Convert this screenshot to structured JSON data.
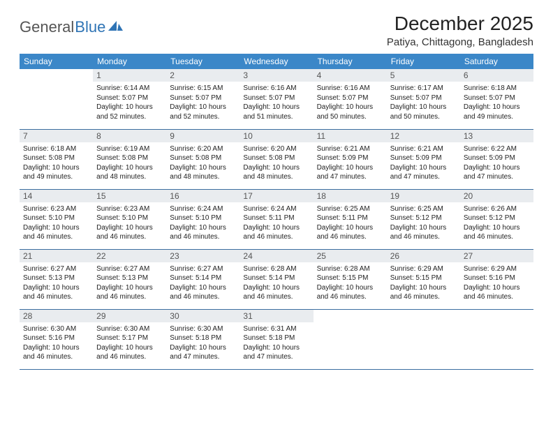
{
  "logo": {
    "text1": "General",
    "text2": "Blue",
    "icon_color": "#2f74b5"
  },
  "title": "December 2025",
  "subtitle": "Patiya, Chittagong, Bangladesh",
  "header_bg": "#3b87c8",
  "header_fg": "#ffffff",
  "daynum_bg": "#e9ecef",
  "border_color": "#3b6ea0",
  "weekdays": [
    "Sunday",
    "Monday",
    "Tuesday",
    "Wednesday",
    "Thursday",
    "Friday",
    "Saturday"
  ],
  "weeks": [
    [
      {
        "n": "",
        "lines": []
      },
      {
        "n": "1",
        "lines": [
          "Sunrise: 6:14 AM",
          "Sunset: 5:07 PM",
          "Daylight: 10 hours and 52 minutes."
        ]
      },
      {
        "n": "2",
        "lines": [
          "Sunrise: 6:15 AM",
          "Sunset: 5:07 PM",
          "Daylight: 10 hours and 52 minutes."
        ]
      },
      {
        "n": "3",
        "lines": [
          "Sunrise: 6:16 AM",
          "Sunset: 5:07 PM",
          "Daylight: 10 hours and 51 minutes."
        ]
      },
      {
        "n": "4",
        "lines": [
          "Sunrise: 6:16 AM",
          "Sunset: 5:07 PM",
          "Daylight: 10 hours and 50 minutes."
        ]
      },
      {
        "n": "5",
        "lines": [
          "Sunrise: 6:17 AM",
          "Sunset: 5:07 PM",
          "Daylight: 10 hours and 50 minutes."
        ]
      },
      {
        "n": "6",
        "lines": [
          "Sunrise: 6:18 AM",
          "Sunset: 5:07 PM",
          "Daylight: 10 hours and 49 minutes."
        ]
      }
    ],
    [
      {
        "n": "7",
        "lines": [
          "Sunrise: 6:18 AM",
          "Sunset: 5:08 PM",
          "Daylight: 10 hours and 49 minutes."
        ]
      },
      {
        "n": "8",
        "lines": [
          "Sunrise: 6:19 AM",
          "Sunset: 5:08 PM",
          "Daylight: 10 hours and 48 minutes."
        ]
      },
      {
        "n": "9",
        "lines": [
          "Sunrise: 6:20 AM",
          "Sunset: 5:08 PM",
          "Daylight: 10 hours and 48 minutes."
        ]
      },
      {
        "n": "10",
        "lines": [
          "Sunrise: 6:20 AM",
          "Sunset: 5:08 PM",
          "Daylight: 10 hours and 48 minutes."
        ]
      },
      {
        "n": "11",
        "lines": [
          "Sunrise: 6:21 AM",
          "Sunset: 5:09 PM",
          "Daylight: 10 hours and 47 minutes."
        ]
      },
      {
        "n": "12",
        "lines": [
          "Sunrise: 6:21 AM",
          "Sunset: 5:09 PM",
          "Daylight: 10 hours and 47 minutes."
        ]
      },
      {
        "n": "13",
        "lines": [
          "Sunrise: 6:22 AM",
          "Sunset: 5:09 PM",
          "Daylight: 10 hours and 47 minutes."
        ]
      }
    ],
    [
      {
        "n": "14",
        "lines": [
          "Sunrise: 6:23 AM",
          "Sunset: 5:10 PM",
          "Daylight: 10 hours and 46 minutes."
        ]
      },
      {
        "n": "15",
        "lines": [
          "Sunrise: 6:23 AM",
          "Sunset: 5:10 PM",
          "Daylight: 10 hours and 46 minutes."
        ]
      },
      {
        "n": "16",
        "lines": [
          "Sunrise: 6:24 AM",
          "Sunset: 5:10 PM",
          "Daylight: 10 hours and 46 minutes."
        ]
      },
      {
        "n": "17",
        "lines": [
          "Sunrise: 6:24 AM",
          "Sunset: 5:11 PM",
          "Daylight: 10 hours and 46 minutes."
        ]
      },
      {
        "n": "18",
        "lines": [
          "Sunrise: 6:25 AM",
          "Sunset: 5:11 PM",
          "Daylight: 10 hours and 46 minutes."
        ]
      },
      {
        "n": "19",
        "lines": [
          "Sunrise: 6:25 AM",
          "Sunset: 5:12 PM",
          "Daylight: 10 hours and 46 minutes."
        ]
      },
      {
        "n": "20",
        "lines": [
          "Sunrise: 6:26 AM",
          "Sunset: 5:12 PM",
          "Daylight: 10 hours and 46 minutes."
        ]
      }
    ],
    [
      {
        "n": "21",
        "lines": [
          "Sunrise: 6:27 AM",
          "Sunset: 5:13 PM",
          "Daylight: 10 hours and 46 minutes."
        ]
      },
      {
        "n": "22",
        "lines": [
          "Sunrise: 6:27 AM",
          "Sunset: 5:13 PM",
          "Daylight: 10 hours and 46 minutes."
        ]
      },
      {
        "n": "23",
        "lines": [
          "Sunrise: 6:27 AM",
          "Sunset: 5:14 PM",
          "Daylight: 10 hours and 46 minutes."
        ]
      },
      {
        "n": "24",
        "lines": [
          "Sunrise: 6:28 AM",
          "Sunset: 5:14 PM",
          "Daylight: 10 hours and 46 minutes."
        ]
      },
      {
        "n": "25",
        "lines": [
          "Sunrise: 6:28 AM",
          "Sunset: 5:15 PM",
          "Daylight: 10 hours and 46 minutes."
        ]
      },
      {
        "n": "26",
        "lines": [
          "Sunrise: 6:29 AM",
          "Sunset: 5:15 PM",
          "Daylight: 10 hours and 46 minutes."
        ]
      },
      {
        "n": "27",
        "lines": [
          "Sunrise: 6:29 AM",
          "Sunset: 5:16 PM",
          "Daylight: 10 hours and 46 minutes."
        ]
      }
    ],
    [
      {
        "n": "28",
        "lines": [
          "Sunrise: 6:30 AM",
          "Sunset: 5:16 PM",
          "Daylight: 10 hours and 46 minutes."
        ]
      },
      {
        "n": "29",
        "lines": [
          "Sunrise: 6:30 AM",
          "Sunset: 5:17 PM",
          "Daylight: 10 hours and 46 minutes."
        ]
      },
      {
        "n": "30",
        "lines": [
          "Sunrise: 6:30 AM",
          "Sunset: 5:18 PM",
          "Daylight: 10 hours and 47 minutes."
        ]
      },
      {
        "n": "31",
        "lines": [
          "Sunrise: 6:31 AM",
          "Sunset: 5:18 PM",
          "Daylight: 10 hours and 47 minutes."
        ]
      },
      {
        "n": "",
        "lines": []
      },
      {
        "n": "",
        "lines": []
      },
      {
        "n": "",
        "lines": []
      }
    ]
  ]
}
